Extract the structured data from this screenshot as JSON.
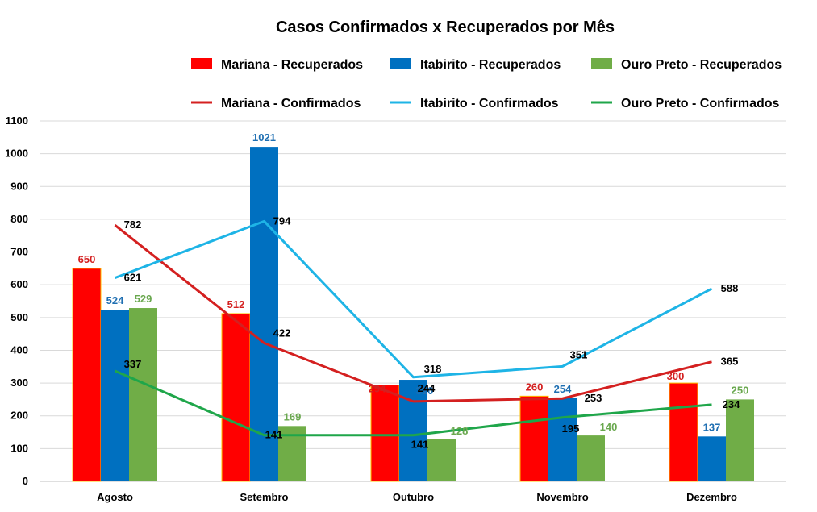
{
  "chart_data": {
    "type": "bar+line",
    "title": "Casos Confirmados x Recuperados por Mês",
    "categories": [
      "Agosto",
      "Setembro",
      "Outubro",
      "Novembro",
      "Dezembro"
    ],
    "ylim": [
      0,
      1100
    ],
    "yticks": [
      0,
      100,
      200,
      300,
      400,
      500,
      600,
      700,
      800,
      900,
      1000,
      1100
    ],
    "grid": true,
    "legend_position": "top",
    "bar_series": [
      {
        "name": "Mariana - Recuperados",
        "color": "#ff0000",
        "label_color": "#d42020",
        "values": [
          650,
          512,
          294,
          260,
          300
        ]
      },
      {
        "name": "Itabirito - Recuperados",
        "color": "#0070c0",
        "label_color": "#1f6fb2",
        "values": [
          524,
          1021,
          310,
          254,
          137
        ]
      },
      {
        "name": "Ouro Preto - Recuperados",
        "color": "#70ad47",
        "label_color": "#6aa84f",
        "values": [
          529,
          169,
          128,
          140,
          250
        ]
      }
    ],
    "line_series": [
      {
        "name": "Mariana - Confirmados",
        "color": "#d42020",
        "values": [
          782,
          422,
          244,
          253,
          365
        ]
      },
      {
        "name": "Itabirito - Confirmados",
        "color": "#1eb4e6",
        "values": [
          621,
          794,
          318,
          351,
          588
        ]
      },
      {
        "name": "Ouro Preto - Confirmados",
        "color": "#1fa64a",
        "values": [
          337,
          141,
          141,
          195,
          234
        ]
      }
    ]
  }
}
